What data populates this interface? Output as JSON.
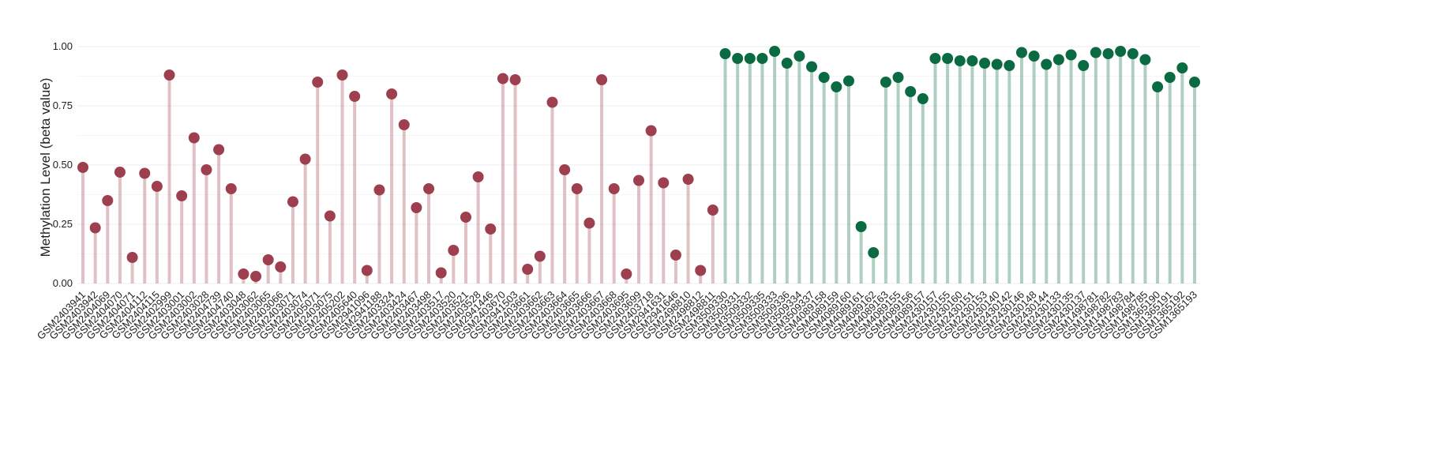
{
  "chart_data": {
    "type": "lollipop",
    "ylabel": "Methylation Level (beta value)",
    "categories": [
      "GSM2403941",
      "GSM2403942",
      "GSM2404069",
      "GSM2404070",
      "GSM2404071",
      "GSM2404112",
      "GSM2404115",
      "GSM2402999",
      "GSM2403001",
      "GSM2403002",
      "GSM2403028",
      "GSM2404739",
      "GSM2404740",
      "GSM2403048",
      "GSM2403062",
      "GSM2403065",
      "GSM2403066",
      "GSM2403071",
      "GSM2403074",
      "GSM2405071",
      "GSM2403075",
      "GSM2405202",
      "GSM2405640",
      "GSM2941096",
      "GSM2941188",
      "GSM2403324",
      "GSM2403424",
      "GSM2403467",
      "GSM2403498",
      "GSM2403517",
      "GSM2403520",
      "GSM2403521",
      "GSM2403528",
      "GSM2941446",
      "GSM2403670",
      "GSM2941503",
      "GSM2403661",
      "GSM2403662",
      "GSM2403663",
      "GSM2403664",
      "GSM2403665",
      "GSM2403666",
      "GSM2403667",
      "GSM2403668",
      "GSM2403695",
      "GSM2403699",
      "GSM2403718",
      "GSM2941631",
      "GSM2941646",
      "GSM2498810",
      "GSM2498812",
      "GSM2498811",
      "GSM3509330",
      "GSM3509331",
      "GSM3509332",
      "GSM3509335",
      "GSM3509333",
      "GSM3509336",
      "GSM3509334",
      "GSM3509337",
      "GSM4089158",
      "GSM4089159",
      "GSM4089160",
      "GSM4089161",
      "GSM4089162",
      "GSM4089163",
      "GSM4089155",
      "GSM4089156",
      "GSM4089157",
      "GSM2430157",
      "GSM2430155",
      "GSM2430160",
      "GSM2430151",
      "GSM2430153",
      "GSM2430140",
      "GSM2430142",
      "GSM2430146",
      "GSM2430148",
      "GSM2430144",
      "GSM2430133",
      "GSM2430135",
      "GSM2430137",
      "GSM1498781",
      "GSM1498782",
      "GSM1498783",
      "GSM1498784",
      "GSM1498785",
      "GSM1365190",
      "GSM1365191",
      "GSM1365192",
      "GSM1365193"
    ],
    "series": [
      {
        "color": "#9e3f4f",
        "values": [
          0.49,
          0.235,
          0.35,
          0.47,
          0.11,
          0.465,
          0.41,
          0.88,
          0.37,
          0.615,
          0.48,
          0.565,
          0.4,
          0.04,
          0.03,
          0.1,
          0.07,
          0.345,
          0.525,
          0.85,
          0.285,
          0.88,
          0.79,
          0.055,
          0.395,
          0.8,
          0.67,
          0.32,
          0.4,
          0.045,
          0.14,
          0.28,
          0.45,
          0.23,
          0.865,
          0.86,
          0.06,
          0.115,
          0.765,
          0.48,
          0.4,
          0.255,
          0.86,
          0.4,
          0.04,
          0.435,
          0.645,
          0.425,
          0.12,
          0.44,
          0.055,
          0.31,
          null,
          null,
          null,
          null,
          null,
          null,
          null,
          null,
          null,
          null,
          null,
          null,
          null,
          null,
          null,
          null,
          null,
          null,
          null,
          null,
          null,
          null,
          null,
          null,
          null,
          null,
          null,
          null,
          null,
          null,
          null,
          null,
          null,
          null,
          null,
          null,
          null,
          null,
          null
        ]
      },
      {
        "color": "#0a6a42",
        "values": [
          null,
          null,
          null,
          null,
          null,
          null,
          null,
          null,
          null,
          null,
          null,
          null,
          null,
          null,
          null,
          null,
          null,
          null,
          null,
          null,
          null,
          null,
          null,
          null,
          null,
          null,
          null,
          null,
          null,
          null,
          null,
          null,
          null,
          null,
          null,
          null,
          null,
          null,
          null,
          null,
          null,
          null,
          null,
          null,
          null,
          null,
          null,
          null,
          null,
          null,
          null,
          null,
          0.97,
          0.95,
          0.95,
          0.95,
          0.98,
          0.93,
          0.96,
          0.915,
          0.87,
          0.83,
          0.855,
          0.24,
          0.13,
          0.85,
          0.87,
          0.81,
          0.78,
          0.95,
          0.95,
          0.94,
          0.94,
          0.93,
          0.925,
          0.92,
          0.975,
          0.96,
          0.925,
          0.945,
          0.965,
          0.92,
          0.975,
          0.97,
          0.98,
          0.97,
          0.945,
          0.83,
          0.87,
          0.91,
          0.85
        ]
      }
    ],
    "ylim": [
      0,
      1.0
    ],
    "yticks": [
      {
        "value": 0,
        "label": "0.00"
      },
      {
        "value": 0.25,
        "label": "0.25"
      },
      {
        "value": 0.5,
        "label": "0.50"
      },
      {
        "value": 0.75,
        "label": "0.75"
      },
      {
        "value": 1.0,
        "label": "1.00"
      }
    ],
    "grid": true
  }
}
